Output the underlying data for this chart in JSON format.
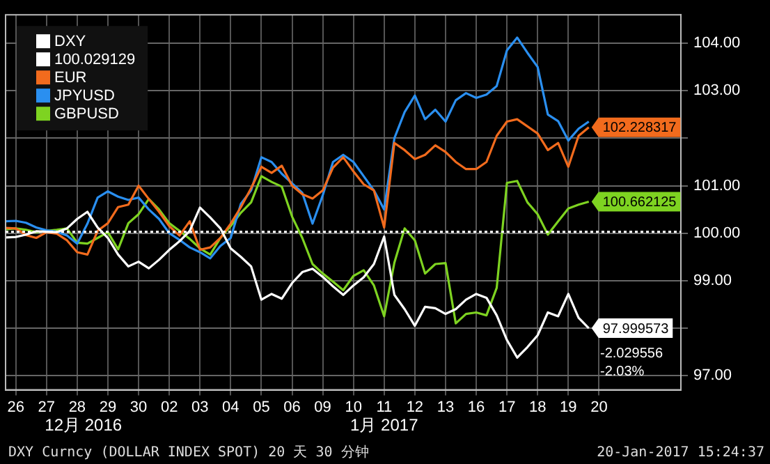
{
  "chart_data": {
    "type": "line",
    "categories": [
      null,
      "26",
      null,
      null,
      "27",
      null,
      null,
      "28",
      null,
      null,
      "29",
      null,
      null,
      "30",
      null,
      null,
      "02",
      null,
      null,
      "03",
      null,
      null,
      "04",
      null,
      null,
      "05",
      null,
      null,
      "06",
      null,
      null,
      "09",
      null,
      null,
      "10",
      null,
      null,
      "11",
      null,
      null,
      "12",
      null,
      null,
      "13",
      null,
      null,
      "16",
      null,
      null,
      "17",
      null,
      null,
      "18",
      null,
      null,
      "19",
      null,
      null,
      "20",
      null,
      null,
      null,
      null,
      null,
      null,
      null,
      null
    ],
    "ylim": [
      96.7,
      104.6
    ],
    "yticks": [
      {
        "value": 97,
        "label": "97.00"
      },
      {
        "value": 98,
        "label": null
      },
      {
        "value": 99,
        "label": "99.00"
      },
      {
        "value": 100,
        "label": "100.00"
      },
      {
        "value": 101,
        "label": "101.00"
      },
      {
        "value": 102,
        "label": null
      },
      {
        "value": 103,
        "label": "103.00"
      },
      {
        "value": 104,
        "label": "104.00"
      }
    ],
    "grid": true,
    "legend": "top left",
    "marker": "none",
    "line_style": "solid",
    "series": [
      {
        "name": "DXY",
        "color": "#ffffff",
        "values": [
          99.91,
          99.92,
          99.97,
          100.04,
          100.03,
          100.02,
          100.1,
          100.3,
          100.45,
          100.12,
          99.9,
          99.55,
          99.3,
          99.4,
          99.26,
          99.44,
          99.65,
          99.83,
          100.05,
          100.54,
          100.33,
          100.1,
          99.68,
          99.5,
          99.3,
          98.6,
          98.72,
          98.62,
          98.95,
          99.18,
          99.25,
          99.08,
          98.88,
          98.7,
          98.9,
          99.07,
          99.35,
          99.93,
          98.7,
          98.4,
          98.05,
          98.45,
          98.42,
          98.3,
          98.4,
          98.6,
          98.72,
          98.64,
          98.27,
          97.75,
          97.38,
          97.6,
          97.85,
          98.33,
          98.25,
          98.72,
          98.22,
          97.999573,
          null,
          null,
          null,
          null,
          null,
          null,
          null,
          null,
          null
        ],
        "value_labels": [
          null,
          null,
          null,
          null,
          null,
          null,
          null,
          null,
          null,
          null,
          null,
          null,
          null,
          null,
          null,
          null,
          null,
          null,
          null,
          null,
          null,
          null,
          null,
          null,
          null,
          null,
          null,
          null,
          null,
          null,
          null,
          null,
          null,
          null,
          null,
          null,
          null,
          null,
          null,
          null,
          null,
          null,
          null,
          null,
          null,
          null,
          null,
          null,
          null,
          null,
          null,
          null,
          null,
          null,
          null,
          null,
          null,
          "97.999573",
          null,
          null,
          null,
          null,
          null,
          null,
          null,
          null,
          null
        ]
      },
      {
        "name": "EUR",
        "color": "#f26b1d",
        "values": [
          100.11,
          100.1,
          99.96,
          99.9,
          100.02,
          99.99,
          99.85,
          99.6,
          99.55,
          100.05,
          100.21,
          100.55,
          100.6,
          101.0,
          100.72,
          100.45,
          100.15,
          99.95,
          100.25,
          99.65,
          99.7,
          99.9,
          100.2,
          100.55,
          100.95,
          101.4,
          101.27,
          101.42,
          101.0,
          100.82,
          100.73,
          100.9,
          101.38,
          101.6,
          101.3,
          101.03,
          100.9,
          100.12,
          101.9,
          101.75,
          101.56,
          101.65,
          101.85,
          101.71,
          101.5,
          101.35,
          101.35,
          101.5,
          102.05,
          102.35,
          102.4,
          102.25,
          102.1,
          101.75,
          101.9,
          101.4,
          102.05,
          102.228317,
          null,
          null,
          null,
          null,
          null,
          null,
          null,
          null,
          null
        ],
        "value_labels": [
          null,
          null,
          null,
          null,
          null,
          null,
          null,
          null,
          null,
          null,
          null,
          null,
          null,
          null,
          null,
          null,
          null,
          null,
          null,
          null,
          null,
          null,
          null,
          null,
          null,
          null,
          null,
          null,
          null,
          null,
          null,
          null,
          null,
          null,
          null,
          null,
          null,
          null,
          null,
          null,
          null,
          null,
          null,
          null,
          null,
          null,
          null,
          null,
          null,
          null,
          null,
          null,
          null,
          null,
          null,
          null,
          null,
          "102.228317",
          null,
          null,
          null,
          null,
          null,
          null,
          null,
          null,
          null
        ]
      },
      {
        "name": "JPYUSD",
        "color": "#2a8ff0",
        "values": [
          100.25,
          100.26,
          100.22,
          100.12,
          100.06,
          100.03,
          99.95,
          99.78,
          100.2,
          100.75,
          100.88,
          100.77,
          100.7,
          100.75,
          100.5,
          100.3,
          100.0,
          99.86,
          99.7,
          99.6,
          99.47,
          99.73,
          99.9,
          100.62,
          100.9,
          101.6,
          101.5,
          101.25,
          101.05,
          100.85,
          100.2,
          100.8,
          101.5,
          101.65,
          101.5,
          101.2,
          100.9,
          100.5,
          102.0,
          102.55,
          102.9,
          102.4,
          102.6,
          102.35,
          102.8,
          102.95,
          102.85,
          102.92,
          103.1,
          103.85,
          104.12,
          103.8,
          103.5,
          102.5,
          102.36,
          101.95,
          102.2,
          102.35,
          null,
          null,
          null,
          null,
          null,
          null,
          null,
          null,
          null
        ]
      },
      {
        "name": "GBPUSD",
        "color": "#7ed321",
        "values": [
          100.08,
          100.1,
          100.07,
          100.02,
          100.05,
          100.07,
          100.1,
          99.8,
          99.78,
          99.9,
          100.02,
          99.66,
          100.21,
          100.4,
          100.72,
          100.5,
          100.21,
          100.05,
          99.88,
          99.68,
          99.55,
          99.9,
          100.15,
          100.43,
          100.65,
          101.2,
          101.08,
          100.98,
          100.35,
          99.9,
          99.35,
          99.15,
          98.98,
          98.8,
          99.1,
          99.22,
          98.9,
          98.25,
          99.38,
          100.1,
          99.85,
          99.15,
          99.35,
          99.37,
          98.1,
          98.3,
          98.33,
          98.27,
          98.85,
          101.06,
          101.1,
          100.65,
          100.4,
          99.97,
          100.25,
          100.52,
          100.6,
          100.662125,
          null,
          null,
          null,
          null,
          null,
          null,
          null,
          null,
          null
        ],
        "value_labels": [
          null,
          null,
          null,
          null,
          null,
          null,
          null,
          null,
          null,
          null,
          null,
          null,
          null,
          null,
          null,
          null,
          null,
          null,
          null,
          null,
          null,
          null,
          null,
          null,
          null,
          null,
          null,
          null,
          null,
          null,
          null,
          null,
          null,
          null,
          null,
          null,
          null,
          null,
          null,
          null,
          null,
          null,
          null,
          null,
          null,
          null,
          null,
          null,
          null,
          null,
          null,
          null,
          null,
          null,
          null,
          null,
          null,
          "100.662125",
          null,
          null,
          null,
          null,
          null,
          null,
          null,
          null,
          null
        ]
      }
    ],
    "ref_lines": [
      {
        "axis": "y",
        "value": 100.029129,
        "label": "100.029129",
        "color": "#ffffff",
        "line_style": "dotted"
      }
    ],
    "annotations": [
      "-2.029556",
      "-2.03%",
      "12月 2016",
      "1月 2017",
      "DXY Curncy (DOLLAR INDEX SPOT) 20 天 30 分钟",
      "20-Jan-2017 15:24:37"
    ]
  }
}
